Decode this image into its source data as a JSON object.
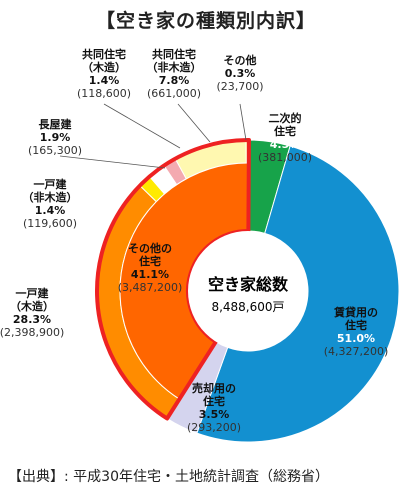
{
  "page": {
    "title": "【空き家の種類別内訳】",
    "source": "【出典】: 平成30年住宅・土地統計調査（総務省）"
  },
  "chart_data": {
    "type": "pie",
    "style": "donut",
    "center_label": "空き家総数",
    "center_value": "8,488,600戸",
    "highlight_color": "#ee2222",
    "slices": [
      {
        "name_lines": [
          "二次的",
          "住宅"
        ],
        "percent": 4.5,
        "percent_label": "4.5%",
        "count": "(381,000)",
        "color": "#17a34a",
        "ring": "outer"
      },
      {
        "name_lines": [
          "賃貸用の",
          "住宅"
        ],
        "percent": 51.0,
        "percent_label": "51.0%",
        "count": "(4,327,200)",
        "color": "#1390d0",
        "ring": "outer"
      },
      {
        "name_lines": [
          "売却用の",
          "住宅"
        ],
        "percent": 3.5,
        "percent_label": "3.5%",
        "count": "(293,200)",
        "color": "#d4d4ee",
        "ring": "outer"
      },
      {
        "name_lines": [
          "一戸建",
          "（木造）"
        ],
        "percent": 28.3,
        "percent_label": "28.3%",
        "count": "(2,398,900)",
        "color": "#ff8c00",
        "ring": "outer"
      },
      {
        "name_lines": [
          "一戸建",
          "（非木造）"
        ],
        "percent": 1.4,
        "percent_label": "1.4%",
        "count": "(119,600)",
        "color": "#ffea00",
        "ring": "outer"
      },
      {
        "name_lines": [
          "長屋建"
        ],
        "percent": 1.9,
        "percent_label": "1.9%",
        "count": "(165,300)",
        "color": "#ffffff",
        "ring": "outer"
      },
      {
        "name_lines": [
          "共同住宅",
          "（木造）"
        ],
        "percent": 1.4,
        "percent_label": "1.4%",
        "count": "(118,600)",
        "color": "#f4aab0",
        "ring": "outer"
      },
      {
        "name_lines": [
          "共同住宅",
          "（非木造）"
        ],
        "percent": 7.8,
        "percent_label": "7.8%",
        "count": "(661,000)",
        "color": "#fff8b0",
        "ring": "outer"
      },
      {
        "name_lines": [
          "その他"
        ],
        "percent": 0.3,
        "percent_label": "0.3%",
        "count": "(23,700)",
        "color": "#f4cc00",
        "ring": "outer"
      }
    ],
    "inner_group": {
      "name_lines": [
        "その他の",
        "住宅"
      ],
      "percent": 41.1,
      "percent_label": "41.1%",
      "count": "(3,487,200)",
      "color": "#ff6600"
    }
  }
}
